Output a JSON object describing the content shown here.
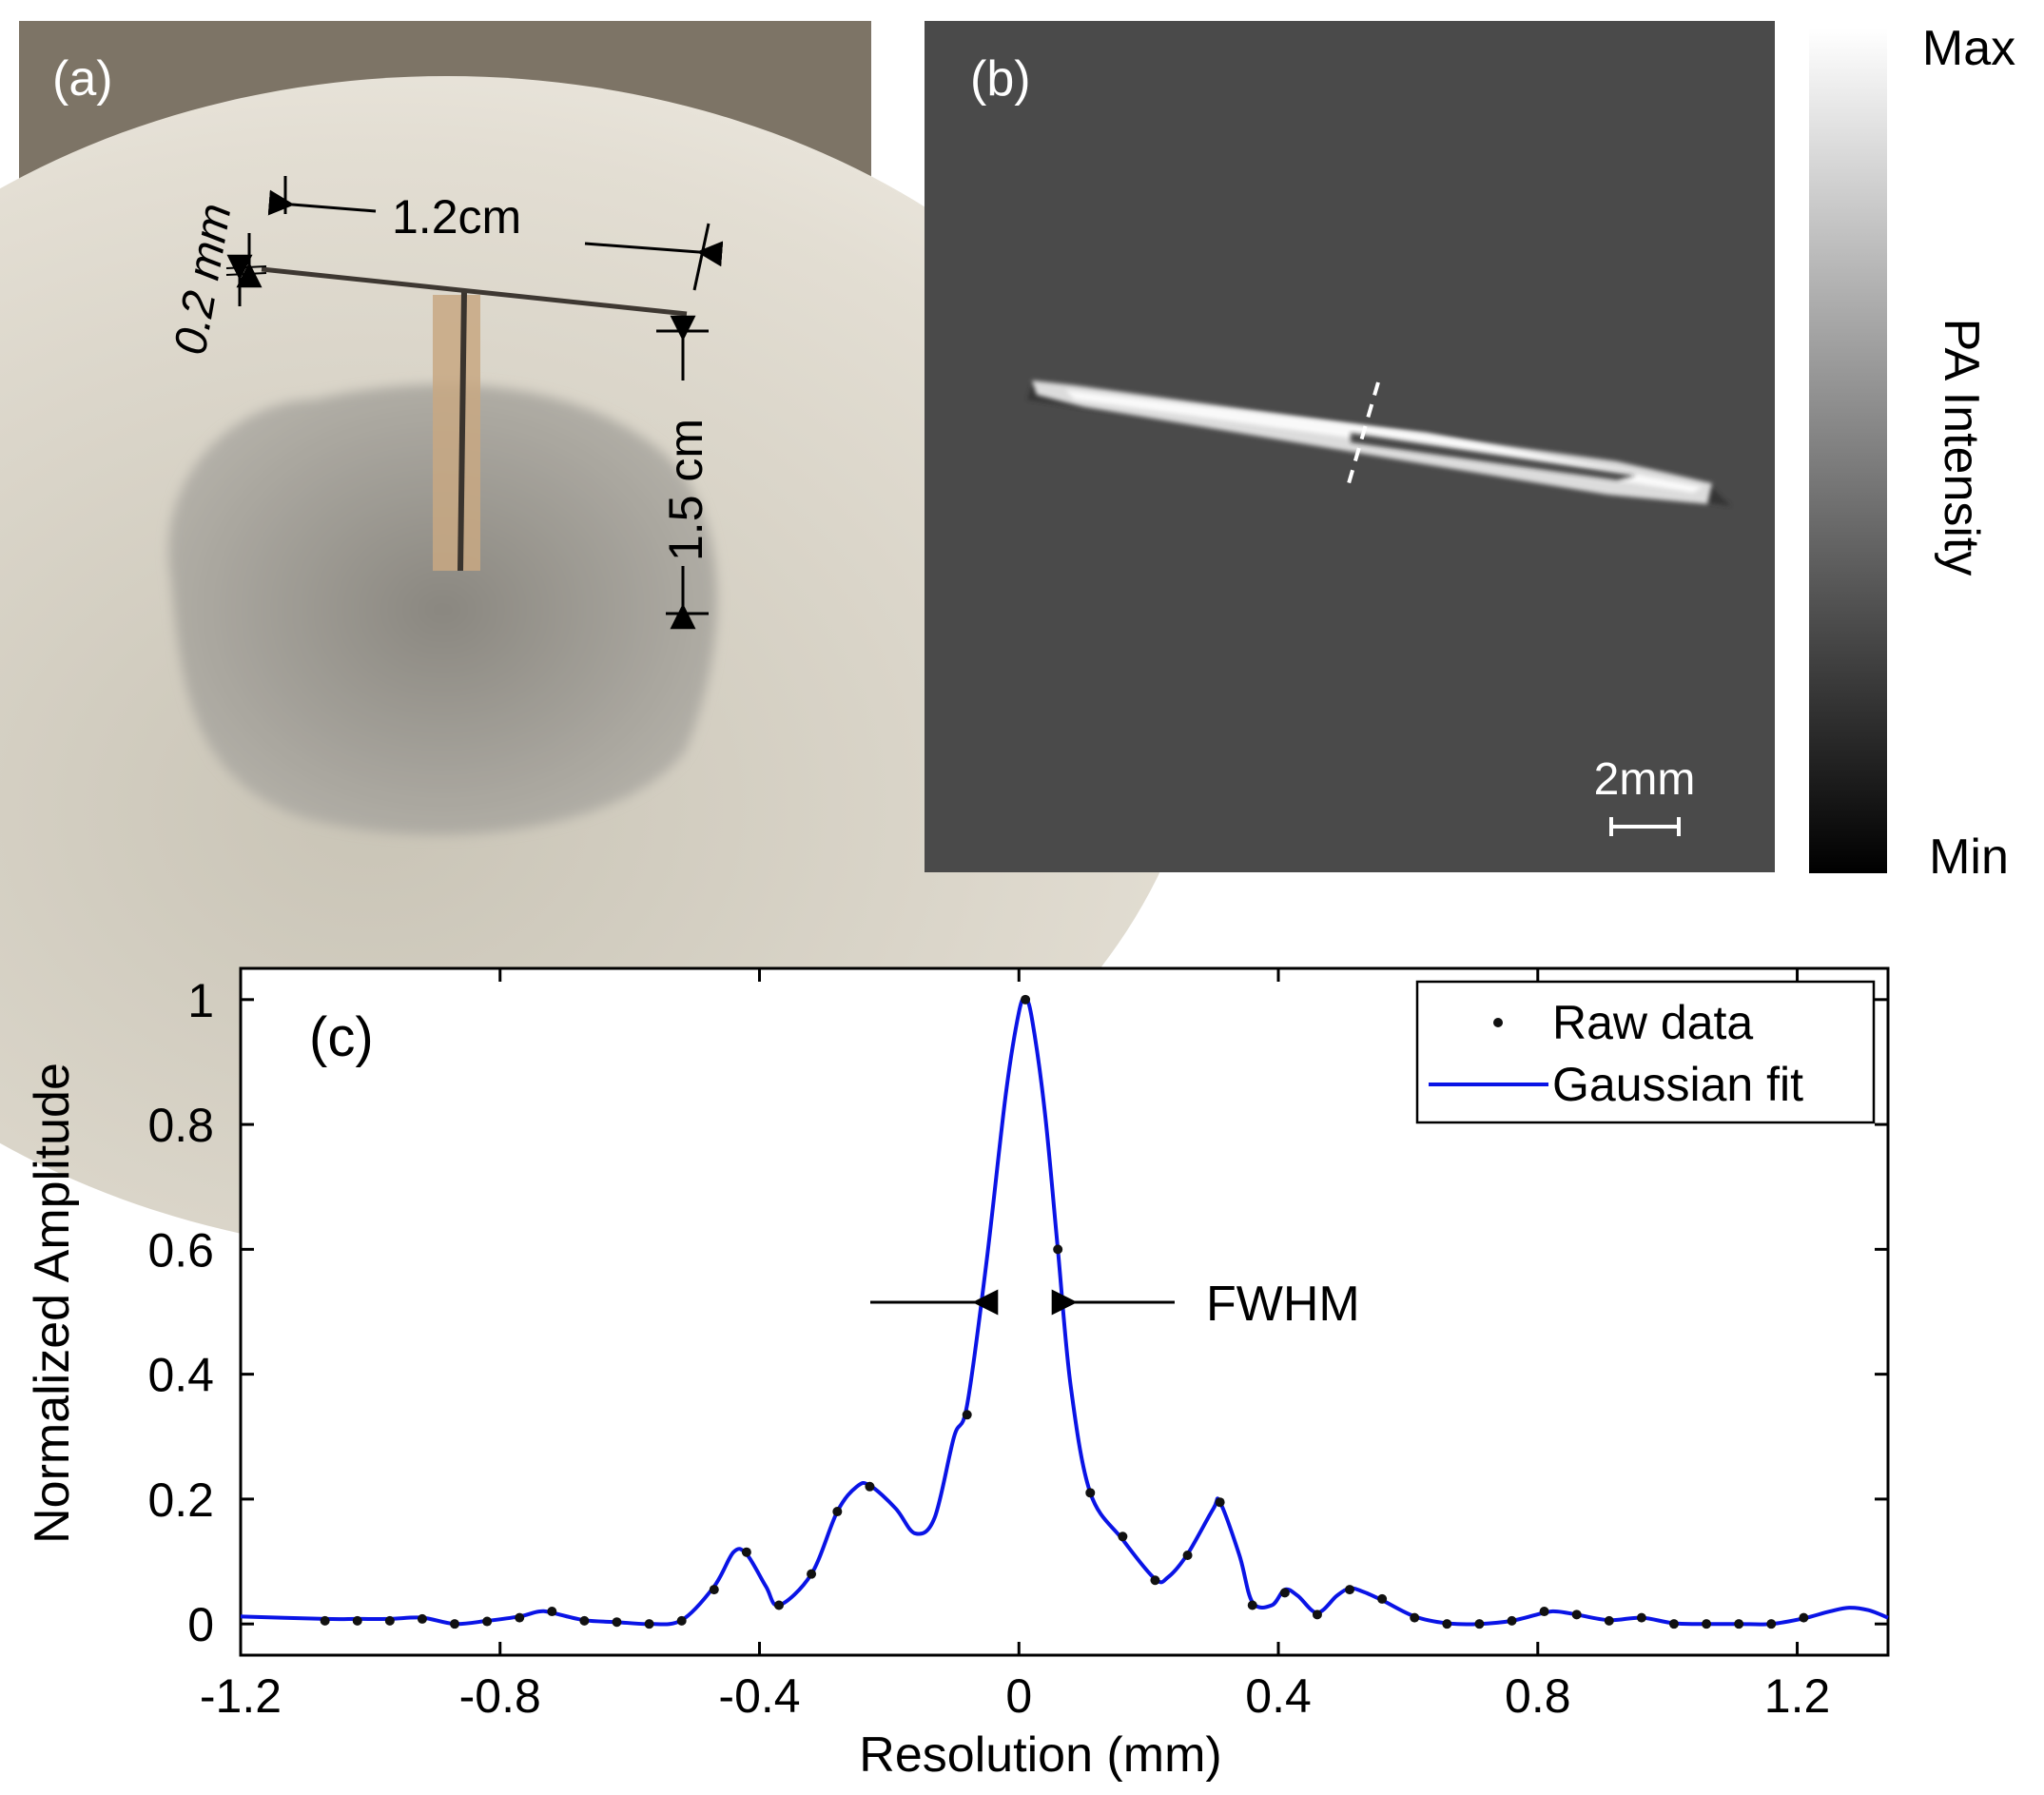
{
  "panel_a": {
    "label": "(a)",
    "dim_wire_length": "1.2cm",
    "dim_wire_diameter": "0.2 mm",
    "dim_stem_height": "1.5 cm"
  },
  "panel_b": {
    "label": "(b)",
    "scale_bar_label": "2mm",
    "colorbar": {
      "max_label": "Max",
      "min_label": "Min",
      "title": "PA Intensity"
    }
  },
  "colors": {
    "fit_line": "#0a14e6",
    "raw_points": "#111111",
    "pa_background": "#4a4a4a"
  },
  "chart_data": {
    "type": "line",
    "panel_label": "(c)",
    "xlabel": "Resolution (mm)",
    "ylabel": "Normalized Amplitude",
    "xlim": [
      -1.2,
      1.34
    ],
    "ylim": [
      -0.05,
      1.05
    ],
    "xticks": [
      "-1.2",
      "-0.8",
      "-0.4",
      "0",
      "0.4",
      "0.8",
      "1.2"
    ],
    "yticks": [
      "0",
      "0.2",
      "0.4",
      "0.6",
      "0.8",
      "1"
    ],
    "annotation": "FWHM",
    "legend": {
      "placement": "top-right",
      "entries": [
        "Raw data",
        "Gaussian fit"
      ]
    },
    "series": [
      {
        "name": "Raw data",
        "x": [
          -1.07,
          -1.02,
          -0.97,
          -0.92,
          -0.87,
          -0.82,
          -0.77,
          -0.72,
          -0.67,
          -0.62,
          -0.57,
          -0.52,
          -0.47,
          -0.42,
          -0.37,
          -0.32,
          -0.28,
          -0.23,
          -0.08,
          0.01,
          0.06,
          0.11,
          0.16,
          0.21,
          0.26,
          0.31,
          0.36,
          0.41,
          0.46,
          0.51,
          0.56,
          0.61,
          0.66,
          0.71,
          0.76,
          0.81,
          0.86,
          0.91,
          0.96,
          1.01,
          1.06,
          1.11,
          1.16,
          1.21
        ],
        "y": [
          0.005,
          0.005,
          0.005,
          0.008,
          0.0,
          0.004,
          0.01,
          0.02,
          0.005,
          0.003,
          0.0,
          0.005,
          0.055,
          0.115,
          0.03,
          0.08,
          0.18,
          0.22,
          0.335,
          1.0,
          0.6,
          0.21,
          0.14,
          0.07,
          0.11,
          0.195,
          0.03,
          0.05,
          0.015,
          0.055,
          0.04,
          0.01,
          0.0,
          0.0,
          0.005,
          0.02,
          0.015,
          0.005,
          0.01,
          0.0,
          0.0,
          0.0,
          0.0,
          0.01
        ]
      },
      {
        "name": "Gaussian fit",
        "x": [
          -1.2,
          -1.07,
          -1.02,
          -0.97,
          -0.92,
          -0.87,
          -0.82,
          -0.77,
          -0.74,
          -0.72,
          -0.67,
          -0.62,
          -0.57,
          -0.52,
          -0.47,
          -0.44,
          -0.42,
          -0.39,
          -0.37,
          -0.32,
          -0.28,
          -0.25,
          -0.23,
          -0.19,
          -0.16,
          -0.13,
          -0.1,
          -0.08,
          -0.05,
          -0.02,
          0.0,
          0.01,
          0.02,
          0.04,
          0.06,
          0.08,
          0.11,
          0.16,
          0.21,
          0.23,
          0.26,
          0.3,
          0.31,
          0.34,
          0.36,
          0.39,
          0.41,
          0.43,
          0.46,
          0.49,
          0.51,
          0.53,
          0.56,
          0.61,
          0.66,
          0.71,
          0.76,
          0.81,
          0.83,
          0.86,
          0.91,
          0.96,
          1.01,
          1.06,
          1.11,
          1.16,
          1.21,
          1.25,
          1.28,
          1.31,
          1.34
        ],
        "y": [
          0.012,
          0.008,
          0.008,
          0.008,
          0.01,
          0.0,
          0.005,
          0.012,
          0.02,
          0.018,
          0.006,
          0.003,
          0.0,
          0.006,
          0.06,
          0.115,
          0.112,
          0.06,
          0.03,
          0.08,
          0.18,
          0.22,
          0.222,
          0.185,
          0.145,
          0.17,
          0.3,
          0.35,
          0.58,
          0.85,
          0.98,
          1.0,
          0.97,
          0.82,
          0.6,
          0.38,
          0.21,
          0.135,
          0.072,
          0.075,
          0.112,
          0.185,
          0.195,
          0.11,
          0.035,
          0.03,
          0.055,
          0.045,
          0.018,
          0.045,
          0.057,
          0.052,
          0.038,
          0.012,
          0.001,
          0.0,
          0.005,
          0.018,
          0.02,
          0.015,
          0.006,
          0.01,
          0.001,
          0.0,
          0.0,
          0.0,
          0.009,
          0.02,
          0.026,
          0.022,
          0.01
        ]
      }
    ]
  }
}
